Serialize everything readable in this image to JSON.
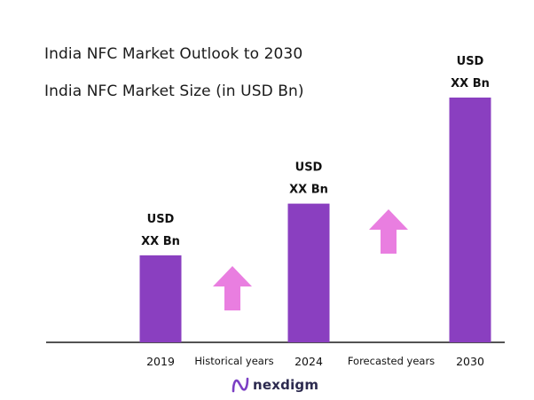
{
  "chart_data": {
    "type": "bar",
    "title": "India NFC Market Outlook to 2030",
    "subtitle": "India NFC Market Size (in USD Bn)",
    "categories": [
      "2019",
      "2024",
      "2030"
    ],
    "values": [
      3.2,
      5.1,
      9.0
    ],
    "value_labels": [
      [
        "USD",
        "XX Bn"
      ],
      [
        "USD",
        "XX Bn"
      ],
      [
        "USD",
        "XX Bn"
      ]
    ],
    "period_labels": [
      "Historical years",
      "Forecasted years"
    ],
    "period_arrows": [
      "up-arrow",
      "up-arrow"
    ],
    "ylim": [
      0,
      10
    ],
    "grid": false,
    "legend": "none",
    "bar_color": "#8a3fc0",
    "arrow_color": "#e97ee0",
    "axis_color": "#1a1a1a"
  },
  "brand": {
    "logo_text": "nexdigm",
    "logo_icon": "nexdigm-logo-icon",
    "logo_color": "#2c2a4f",
    "logo_icon_color": "#7b3fc4"
  }
}
